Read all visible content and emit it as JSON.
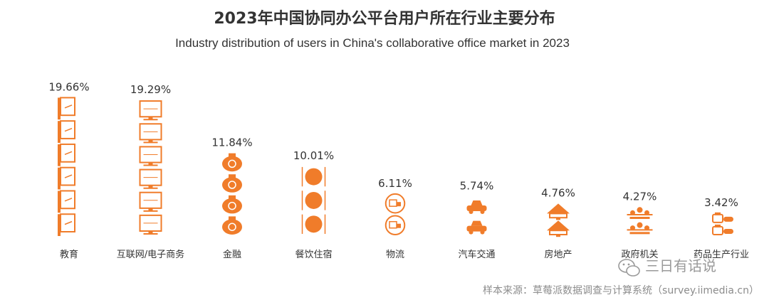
{
  "chart_data": {
    "type": "bar",
    "title": "2023年中国协同办公平台用户所在行业主要分布",
    "subtitle": "Industry distribution of users in China's collaborative office market in 2023",
    "categories": [
      "教育",
      "互联网/电子商务",
      "金融",
      "餐饮住宿",
      "物流",
      "汽车交通",
      "房地产",
      "政府机关",
      "药品生产行业"
    ],
    "values": [
      19.66,
      19.29,
      11.84,
      10.01,
      6.11,
      5.74,
      4.76,
      4.27,
      3.42
    ],
    "value_labels": [
      "19.66%",
      "19.29%",
      "11.84%",
      "10.01%",
      "6.11%",
      "5.74%",
      "4.76%",
      "4.27%",
      "3.42%"
    ],
    "icons": [
      "teacher-board-icon",
      "computer-monitor-icon",
      "money-bag-icon",
      "dining-plate-icon",
      "delivery-truck-icon",
      "car-icon",
      "house-icon",
      "government-people-icon",
      "medicine-icon"
    ],
    "xlabel": "",
    "ylabel": "",
    "grid": false,
    "legend": "none",
    "bar_color": "#f07c2a"
  },
  "watermark": "三日有话说",
  "source": "样本来源：草莓派数据调查与计算系统（survey.iimedia.cn）",
  "colors": {
    "accent": "#f07c2a",
    "text": "#333333",
    "muted": "#8c8c8c"
  }
}
